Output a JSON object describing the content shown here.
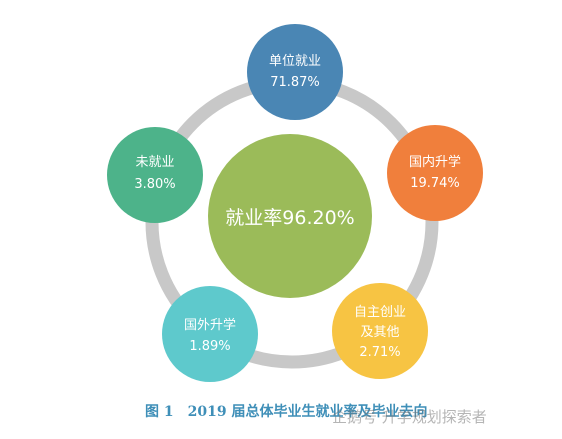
{
  "center": {
    "label": "就业率96.20%",
    "color": "#9bbb59"
  },
  "nodes": [
    {
      "id": "unit-employment",
      "name": "单位就业",
      "value": "71.87%",
      "color": "#4a86b4"
    },
    {
      "id": "domestic-study",
      "name": "国内升学",
      "value": "19.74%",
      "color": "#f07f3c"
    },
    {
      "id": "self-employed",
      "name": "自主创业及其他",
      "name_lines": [
        "自主创业",
        "及其他"
      ],
      "value": "2.71%",
      "color": "#f7c443"
    },
    {
      "id": "abroad-study",
      "name": "国外升学",
      "value": "1.89%",
      "color": "#5ec9cc"
    },
    {
      "id": "unemployed",
      "name": "未就业",
      "value": "3.80%",
      "color": "#4db38a"
    }
  ],
  "ring_color": "#c8c8c8",
  "caption": {
    "figure_no": "图 1",
    "title": "2019 届总体毕业生就业率及毕业去向"
  },
  "watermark": "企鹅号 升学规划探索者"
}
